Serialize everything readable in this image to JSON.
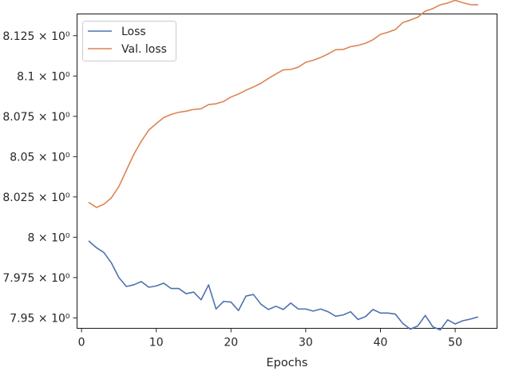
{
  "chart_data": {
    "type": "line",
    "title": "",
    "xlabel": "Epochs",
    "ylabel": "",
    "xlim": [
      -0.6,
      55.6
    ],
    "ylim": [
      7.9435,
      8.1385
    ],
    "grid": false,
    "legend_position": "top-left",
    "x_ticks": [
      0,
      10,
      20,
      30,
      40,
      50
    ],
    "x_tick_labels": [
      "0",
      "10",
      "20",
      "30",
      "40",
      "50"
    ],
    "y_ticks": [
      7.95,
      7.975,
      8.0,
      8.025,
      8.05,
      8.075,
      8.1,
      8.125
    ],
    "y_tick_labels": [
      "7.95 × 10⁰",
      "7.975 × 10⁰",
      "8 × 10⁰",
      "8.025 × 10⁰",
      "8.05 × 10⁰",
      "8.075 × 10⁰",
      "8.1 × 10⁰",
      "8.125 × 10⁰"
    ],
    "x": [
      1,
      2,
      3,
      4,
      5,
      6,
      7,
      8,
      9,
      10,
      11,
      12,
      13,
      14,
      15,
      16,
      17,
      18,
      19,
      20,
      21,
      22,
      23,
      24,
      25,
      26,
      27,
      28,
      29,
      30,
      31,
      32,
      33,
      34,
      35,
      36,
      37,
      38,
      39,
      40,
      41,
      42,
      43,
      44,
      45,
      46,
      47,
      48,
      49,
      50,
      51,
      52,
      53
    ],
    "series": [
      {
        "name": "Loss",
        "color": "#4c72b0",
        "values": [
          7.9975,
          7.9935,
          7.9905,
          7.984,
          7.975,
          7.9695,
          7.9705,
          7.9725,
          7.969,
          7.9698,
          7.9715,
          7.9682,
          7.9682,
          7.965,
          7.966,
          7.9612,
          7.9705,
          7.9555,
          7.9602,
          7.9598,
          7.9545,
          7.9635,
          7.9645,
          7.9585,
          7.9552,
          7.9572,
          7.9552,
          7.9592,
          7.9555,
          7.9555,
          7.9542,
          7.9555,
          7.9538,
          7.951,
          7.9518,
          7.9538,
          7.949,
          7.9508,
          7.9552,
          7.953,
          7.953,
          7.9523,
          7.9465,
          7.943,
          7.945,
          7.9515,
          7.9445,
          7.9425,
          7.9488,
          7.9462,
          7.9482,
          7.9492,
          7.9505
        ]
      },
      {
        "name": "Val. loss",
        "color": "#dd8452",
        "values": [
          8.0215,
          8.0185,
          8.0205,
          8.0245,
          8.0315,
          8.0415,
          8.0515,
          8.0595,
          8.0665,
          8.0705,
          8.0742,
          8.0762,
          8.0775,
          8.0782,
          8.0793,
          8.0797,
          8.0823,
          8.0828,
          8.0842,
          8.087,
          8.0888,
          8.0912,
          8.0932,
          8.0955,
          8.0985,
          8.1012,
          8.1038,
          8.1041,
          8.1055,
          8.1085,
          8.1098,
          8.1115,
          8.1137,
          8.1163,
          8.1165,
          8.1182,
          8.119,
          8.1203,
          8.1225,
          8.1258,
          8.1272,
          8.1288,
          8.1332,
          8.1347,
          8.1365,
          8.1403,
          8.1418,
          8.1442,
          8.1453,
          8.147,
          8.1455,
          8.1443,
          8.1442
        ]
      }
    ]
  }
}
